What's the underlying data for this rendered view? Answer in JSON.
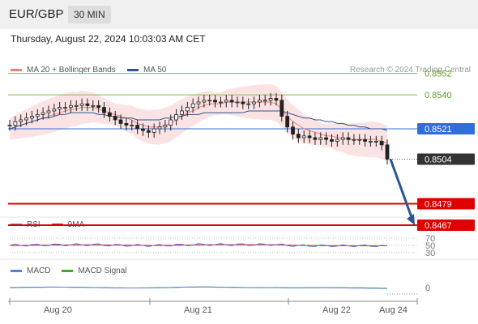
{
  "header": {
    "pair": "EUR/GBP",
    "timeframe": "30 MIN"
  },
  "datetime": "Thursday, August 22, 2024 10:03:03 AM CET",
  "legend": {
    "ma_bb": {
      "label": "MA 20 + Bollinger Bands",
      "color": "#f08080"
    },
    "ma50": {
      "label": "MA 50",
      "color": "#2a5599"
    }
  },
  "credit": "Research © 2024 Trading Central",
  "levels": [
    {
      "value": "0.8552",
      "kind": "resistance",
      "color": "#7cc04a"
    },
    {
      "value": "0.8540",
      "kind": "resistance",
      "color": "#7cc04a"
    },
    {
      "value": "0.8521",
      "kind": "pivot",
      "color": "#2f6fdb"
    },
    {
      "value": "0.8504",
      "kind": "last",
      "color": "#333333"
    },
    {
      "value": "0.8479",
      "kind": "support",
      "color": "#e00000"
    },
    {
      "value": "0.8467",
      "kind": "support",
      "color": "#e00000"
    }
  ],
  "rsi": {
    "label": "RSI",
    "ma_label": "9MA",
    "color": "#5b7fd6",
    "ma_color": "#dd1111",
    "ticks": [
      "70",
      "50",
      "30"
    ]
  },
  "macd": {
    "label": "MACD",
    "signal_label": "MACD Signal",
    "color": "#5b7fd6",
    "signal_color": "#44aa22",
    "ticks": [
      "0"
    ]
  },
  "x_labels": [
    "Aug 20",
    "Aug 21",
    "Aug 22",
    "Aug 24"
  ],
  "chart_data": {
    "type": "candlestick",
    "series_name": "EUR/GBP",
    "close": [
      0.8523,
      0.8525,
      0.8526,
      0.8527,
      0.8528,
      0.8529,
      0.853,
      0.8531,
      0.8532,
      0.8533,
      0.8533,
      0.8534,
      0.8534,
      0.8535,
      0.8534,
      0.8534,
      0.8533,
      0.853,
      0.8528,
      0.8526,
      0.8524,
      0.8523,
      0.8523,
      0.8521,
      0.852,
      0.8519,
      0.8521,
      0.8522,
      0.8523,
      0.8526,
      0.8529,
      0.8531,
      0.8533,
      0.8535,
      0.8536,
      0.8537,
      0.8537,
      0.8536,
      0.8536,
      0.8537,
      0.8536,
      0.8536,
      0.8535,
      0.8535,
      0.8536,
      0.8537,
      0.8537,
      0.8538,
      0.8537,
      0.8528,
      0.8522,
      0.8518,
      0.8516,
      0.8517,
      0.8516,
      0.8515,
      0.8516,
      0.8515,
      0.8514,
      0.8515,
      0.8516,
      0.8515,
      0.8515,
      0.8515,
      0.8514,
      0.8514,
      0.8514,
      0.8512,
      0.8504
    ],
    "ma20": [
      0.8521,
      0.8522,
      0.8523,
      0.8524,
      0.8525,
      0.8526,
      0.8527,
      0.8528,
      0.8529,
      0.853,
      0.8531,
      0.8532,
      0.8532,
      0.8533,
      0.8533,
      0.8533,
      0.8532,
      0.8531,
      0.853,
      0.8529,
      0.8528,
      0.8527,
      0.8526,
      0.8524,
      0.8523,
      0.8522,
      0.8522,
      0.8522,
      0.8523,
      0.8524,
      0.8526,
      0.8528,
      0.853,
      0.8531,
      0.8533,
      0.8534,
      0.8535,
      0.8535,
      0.8535,
      0.8536,
      0.8536,
      0.8536,
      0.8536,
      0.8536,
      0.8536,
      0.8536,
      0.8536,
      0.8536,
      0.8535,
      0.8532,
      0.8528,
      0.8525,
      0.8523,
      0.8521,
      0.852,
      0.8519,
      0.8518,
      0.8517,
      0.8517,
      0.8516,
      0.8516,
      0.8515,
      0.8515,
      0.8515,
      0.8515,
      0.8515,
      0.8515,
      0.8514,
      0.8513
    ],
    "ma50": [
      0.8521,
      0.8522,
      0.8523,
      0.8524,
      0.8525,
      0.8526,
      0.8527,
      0.8527,
      0.8528,
      0.8529,
      0.8529,
      0.853,
      0.853,
      0.853,
      0.853,
      0.853,
      0.8529,
      0.8529,
      0.8528,
      0.8528,
      0.8527,
      0.8527,
      0.8527,
      0.8526,
      0.8526,
      0.8526,
      0.8526,
      0.8526,
      0.8527,
      0.8527,
      0.8528,
      0.8528,
      0.8529,
      0.8529,
      0.8529,
      0.853,
      0.853,
      0.853,
      0.853,
      0.853,
      0.853,
      0.853,
      0.853,
      0.8531,
      0.8531,
      0.8531,
      0.8531,
      0.8531,
      0.8531,
      0.8531,
      0.853,
      0.8529,
      0.8528,
      0.8527,
      0.8527,
      0.8526,
      0.8526,
      0.8525,
      0.8525,
      0.8524,
      0.8524,
      0.8523,
      0.8523,
      0.8522,
      0.8522,
      0.8521,
      0.8521,
      0.8521,
      0.852
    ],
    "rsi_last": 36,
    "forecast": {
      "from": 0.8504,
      "to": 0.8467
    },
    "y_range": [
      0.846,
      0.856
    ]
  }
}
